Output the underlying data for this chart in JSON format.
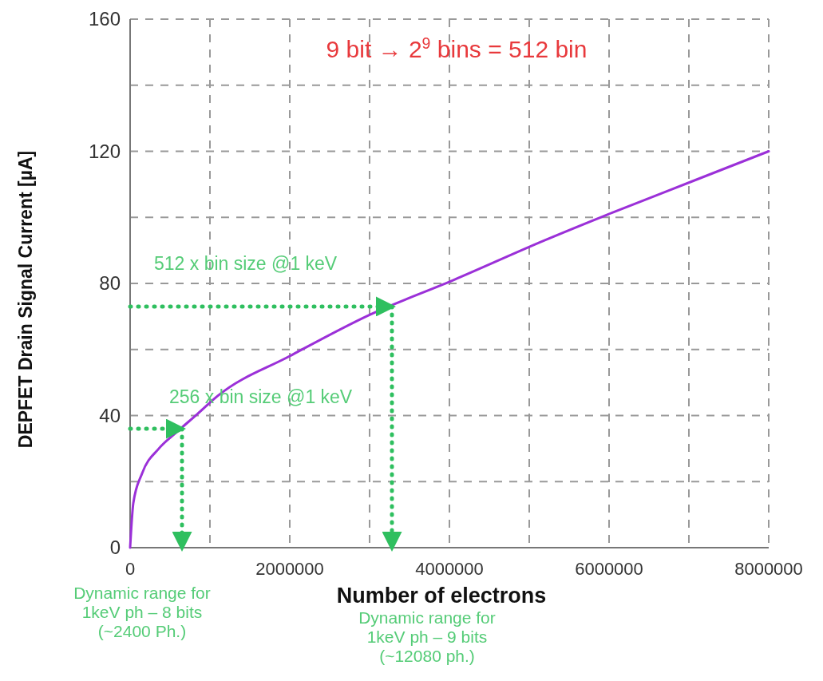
{
  "chart_data": {
    "type": "line",
    "xlabel": "Number of electrons",
    "ylabel": "DEPFET Drain Signal Current [µA]",
    "xlim": [
      0,
      8000000
    ],
    "ylim": [
      0,
      160
    ],
    "xticks": [
      0,
      {
        "value": 1000000,
        "label": null
      },
      2000000,
      {
        "value": 3000000,
        "label": null
      },
      4000000,
      {
        "value": 5000000,
        "label": null
      },
      6000000,
      {
        "value": 7000000,
        "label": null
      },
      8000000
    ],
    "yticks": [
      0,
      {
        "value": 20,
        "label": null
      },
      40,
      {
        "value": 60,
        "label": null
      },
      80,
      {
        "value": 100,
        "label": null
      },
      120,
      {
        "value": 140,
        "label": null
      },
      160
    ],
    "grid": true,
    "marker": "none",
    "series": [
      {
        "color": "#9b30d8",
        "line_style": "solid",
        "x": [
          0,
          40000,
          150000,
          360000,
          570000,
          840000,
          1100000,
          2000000,
          3000000,
          4050000,
          5190000,
          6040000,
          7050000,
          8000000
        ],
        "values": [
          0,
          13.5,
          22.5,
          30,
          34.7,
          40.4,
          46,
          58,
          70.5,
          81,
          93,
          101.4,
          111,
          120
        ]
      },
      {
        "color": "#2fbf5f",
        "line_style": "dotted",
        "x": [
          0,
          650000
        ],
        "values": [
          36,
          36
        ]
      },
      {
        "color": "#2fbf5f",
        "line_style": "dotted",
        "x": [
          650000,
          650000
        ],
        "values": [
          36,
          0
        ]
      },
      {
        "color": "#2fbf5f",
        "line_style": "dotted",
        "x": [
          0,
          3280000
        ],
        "values": [
          73,
          73
        ]
      },
      {
        "color": "#2fbf5f",
        "line_style": "dotted",
        "x": [
          3280000,
          3280000
        ],
        "values": [
          73,
          0
        ]
      }
    ],
    "annotations": [
      "9 bit → 2$^{9}$ bins = 512 bin",
      "512 x bin size @1 keV",
      "256 x bin size @1 keV",
      "Dynamic range for\n1keV ph – 8 bits\n(~2400 Ph.)",
      "Dynamic range for\n1keV ph – 9 bits\n(~12080 ph.)"
    ]
  }
}
